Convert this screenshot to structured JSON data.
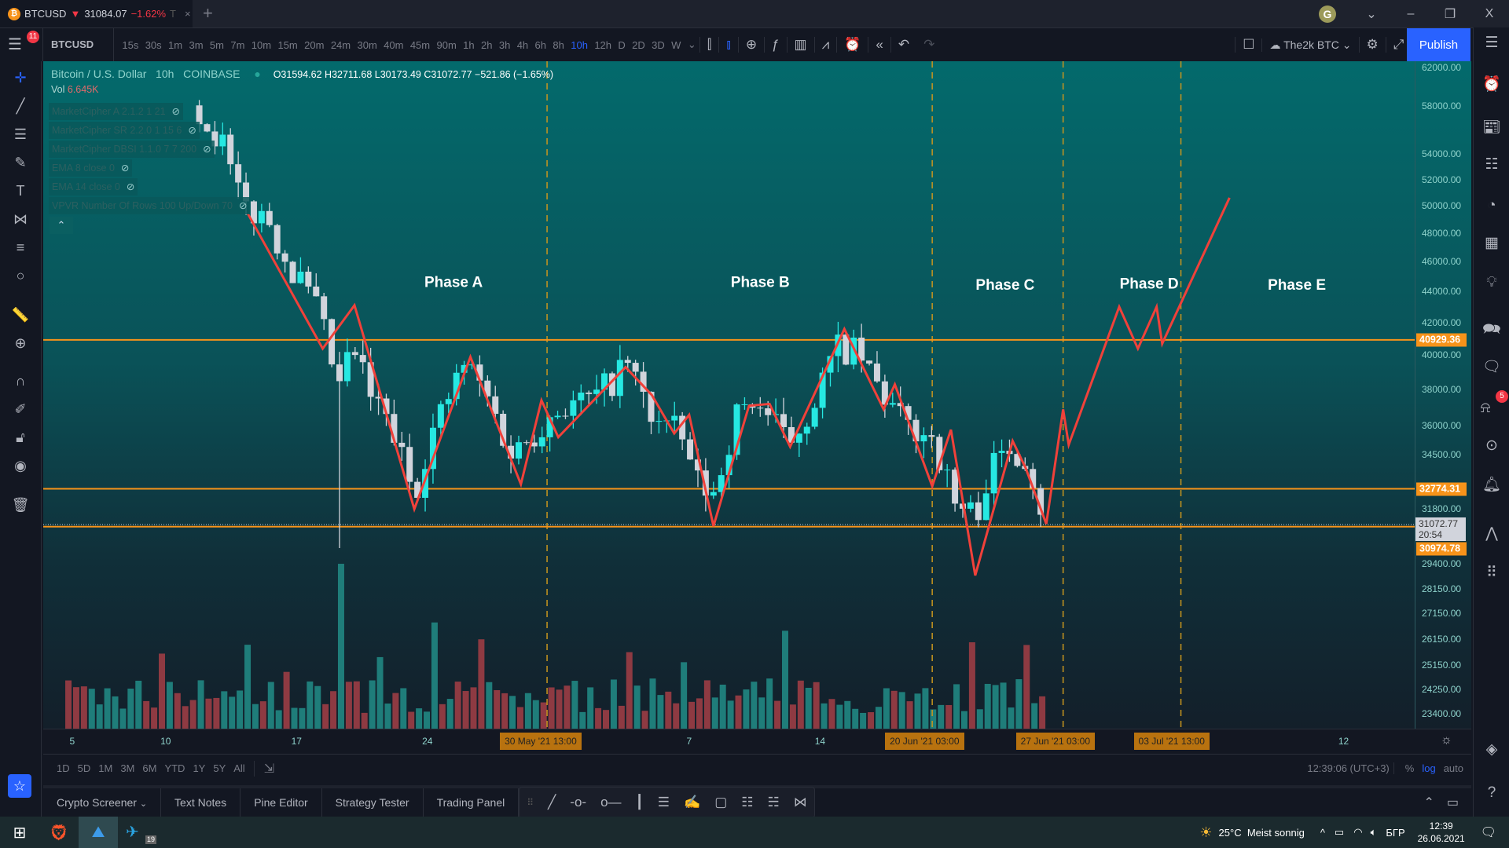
{
  "tab": {
    "symbol": "BTCUSD",
    "arrow": "▼",
    "price": "31084.07",
    "change": "−1.62%",
    "trunc": "T",
    "close": "×",
    "new": "+"
  },
  "window": {
    "avatar": "G",
    "chev": "⌄",
    "min": "–",
    "max": "❐",
    "close": "X"
  },
  "toolbar": {
    "symbol": "BTCUSD",
    "timeframes": [
      "15s",
      "30s",
      "1m",
      "3m",
      "5m",
      "7m",
      "10m",
      "15m",
      "20m",
      "24m",
      "30m",
      "40m",
      "45m",
      "90m",
      "1h",
      "2h",
      "3h",
      "4h",
      "6h",
      "8h",
      "10h",
      "12h",
      "D",
      "2D",
      "3D",
      "W"
    ],
    "active_timeframe": "10h",
    "layout_name": "The2k BTC",
    "publish": "Publish",
    "menu_badge": "11"
  },
  "legend": {
    "title": "Bitcoin / U.S. Dollar",
    "interval": "10h",
    "exchange": "COINBASE",
    "o": "O",
    "o_val": "31594.62",
    "h": "H",
    "h_val": "32711.68",
    "l": "L",
    "l_val": "30173.49",
    "c": "C",
    "c_val": "31072.77",
    "chg": "−521.86 (−1.65%)",
    "vol_label": "Vol",
    "vol_val": "6.645K",
    "indicators": [
      "MarketCipher A 2.1.2 1 21",
      "MarketCipher SR 2.2.0 1 15 6",
      "MarketCipher DBSI 1.1.0 7 7 200",
      "EMA 8 close 0",
      "EMA 14 close 0",
      "VPVR Number Of Rows 100 Up/Down 70"
    ],
    "collapse": "⌃"
  },
  "chart_data": {
    "type": "candlestick",
    "scale": "log",
    "x_unit": "days since 2021-05-01",
    "price_path": [
      [
        10.8,
        57500
      ],
      [
        12,
        55000
      ],
      [
        13,
        50000
      ],
      [
        14.5,
        49000
      ],
      [
        15.5,
        46000
      ],
      [
        17,
        43000
      ],
      [
        18.3,
        38000
      ],
      [
        19,
        40500
      ],
      [
        20,
        37500
      ],
      [
        21,
        36000
      ],
      [
        22.3,
        32500
      ],
      [
        23,
        35000
      ],
      [
        25,
        39500
      ],
      [
        26,
        38000
      ],
      [
        27.5,
        34500
      ],
      [
        28.5,
        35500
      ],
      [
        30,
        37000
      ],
      [
        32,
        37500
      ],
      [
        33.7,
        39500
      ],
      [
        35,
        36500
      ],
      [
        36.5,
        35500
      ],
      [
        37.5,
        33000
      ],
      [
        38.3,
        32500
      ],
      [
        39.5,
        36500
      ],
      [
        40.5,
        37500
      ],
      [
        42.3,
        35000
      ],
      [
        43.5,
        37000
      ],
      [
        45,
        40500
      ],
      [
        46,
        40000
      ],
      [
        47.5,
        37500
      ],
      [
        48.5,
        36000
      ],
      [
        50,
        35500
      ],
      [
        51.2,
        32000
      ],
      [
        52.3,
        31500
      ],
      [
        53,
        33500
      ],
      [
        54.2,
        35000
      ],
      [
        55,
        34500
      ],
      [
        56,
        31300
      ]
    ],
    "wick_low": [
      18.4,
      30000
    ],
    "last_close": 31072.77,
    "countdown": "20:54",
    "horizontal_levels": [
      {
        "price": 40929.36,
        "label": "40929.36"
      },
      {
        "price": 32774.31,
        "label": "32774.31"
      },
      {
        "price": 30974.78,
        "label": "30974.78"
      }
    ],
    "vertical_dashed_days": [
      29.4,
      50.0,
      57.0,
      63.3
    ],
    "zigzag": [
      [
        13.4,
        49400
      ],
      [
        17.4,
        40400
      ],
      [
        19.1,
        43100
      ],
      [
        22.3,
        31800
      ],
      [
        25.3,
        39900
      ],
      [
        28.0,
        33000
      ],
      [
        29.1,
        37400
      ],
      [
        30.0,
        35400
      ],
      [
        33.6,
        39300
      ],
      [
        35.0,
        37700
      ],
      [
        36.2,
        35600
      ],
      [
        37.0,
        36600
      ],
      [
        38.3,
        31000
      ],
      [
        40.2,
        37100
      ],
      [
        41.3,
        37200
      ],
      [
        42.4,
        34900
      ],
      [
        45.3,
        41600
      ],
      [
        47.4,
        36900
      ],
      [
        48.0,
        38300
      ],
      [
        50.0,
        32900
      ],
      [
        51.0,
        35800
      ],
      [
        52.3,
        28800
      ],
      [
        54.3,
        35200
      ],
      [
        55.0,
        33800
      ],
      [
        56.1,
        31100
      ],
      [
        57.0,
        36900
      ],
      [
        57.3,
        35000
      ],
      [
        60.0,
        43000
      ],
      [
        61.0,
        40400
      ],
      [
        62.0,
        43000
      ],
      [
        62.3,
        40700
      ],
      [
        65.9,
        50600
      ]
    ],
    "phases": [
      {
        "text": "Phase A",
        "day": 24.4,
        "price": 44300
      },
      {
        "text": "Phase B",
        "day": 40.8,
        "price": 44300
      },
      {
        "text": "Phase C",
        "day": 53.9,
        "price": 44100
      },
      {
        "text": "Phase D",
        "day": 61.6,
        "price": 44200
      },
      {
        "text": "Phase E",
        "day": 69.5,
        "price": 44100
      }
    ],
    "price_ticks": [
      "62000.00",
      "58000.00",
      "54000.00",
      "52000.00",
      "50000.00",
      "48000.00",
      "46000.00",
      "44000.00",
      "42000.00",
      "40000.00",
      "38000.00",
      "36000.00",
      "34500.00",
      "31800.00",
      "29400.00"
    ],
    "volume_ticks": [
      "28150.00",
      "27150.00",
      "26150.00",
      "25150.00",
      "24250.00",
      "23400.00"
    ],
    "time_ticks": [
      {
        "t": "5",
        "day": 4
      },
      {
        "t": "10",
        "day": 9
      },
      {
        "t": "17",
        "day": 16
      },
      {
        "t": "24",
        "day": 23
      },
      {
        "t": "7",
        "day": 37
      },
      {
        "t": "14",
        "day": 44
      },
      {
        "t": "12",
        "day": 72
      }
    ],
    "time_tags": [
      {
        "t": "30 May '21   13:00",
        "day": 29.4
      },
      {
        "t": "20 Jun '21   03:00",
        "day": 50.0
      },
      {
        "t": "27 Jun '21   03:00",
        "day": 57.0
      },
      {
        "t": "03 Jul '21   13:00",
        "day": 63.3
      }
    ],
    "colors": {
      "up": "#26e8e2",
      "down": "#d1d4dc",
      "vol_up": "#1f7d7a",
      "vol_down": "#8e3a42",
      "level": "#f7931a",
      "zigzag": "#f0413a",
      "dashed": "#c8961e"
    }
  },
  "rangebar": {
    "ranges": [
      "1D",
      "5D",
      "1M",
      "3M",
      "6M",
      "YTD",
      "1Y",
      "5Y",
      "All"
    ],
    "clock": "12:39:06 (UTC+3)",
    "pct": "%",
    "log": "log",
    "auto": "auto"
  },
  "bottom": {
    "tabs": [
      "Crypto Screener",
      "Text Notes",
      "Pine Editor",
      "Strategy Tester",
      "Trading Panel"
    ],
    "dropdown": "⌄"
  },
  "taskbar": {
    "telegram_badge": "19",
    "weather": "25°C",
    "weather_text": "Meist sonnig",
    "lang": "БГР",
    "time": "12:39",
    "date": "26.06.2021"
  },
  "sidebar": {
    "ideas_badge": "5"
  }
}
